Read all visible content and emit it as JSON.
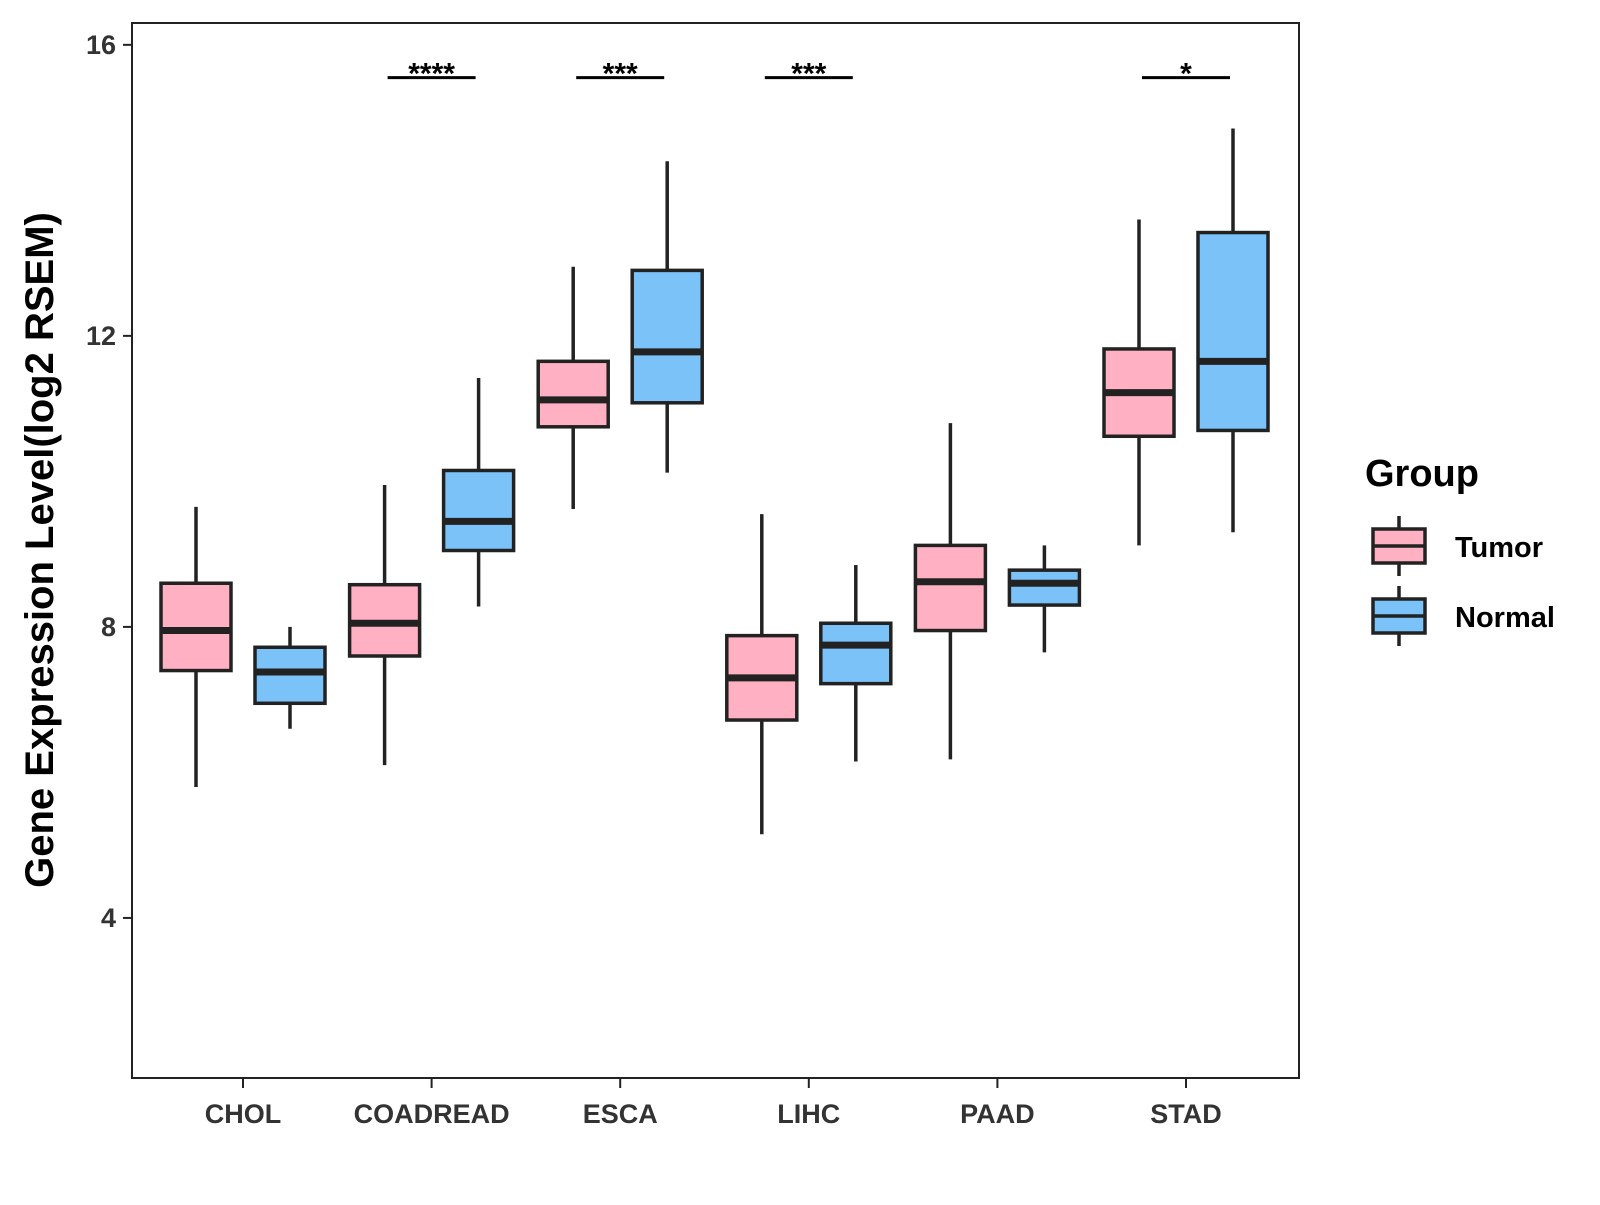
{
  "chart_data": {
    "type": "boxplot",
    "ylabel": "Gene Expression Level(log2 RSEM)",
    "xlabel": "",
    "ylim": [
      1.8,
      16.3
    ],
    "yticks": [
      4,
      8,
      12,
      16
    ],
    "categories": [
      "CHOL",
      "COADREAD",
      "ESCA",
      "LIHC",
      "PAAD",
      "STAD"
    ],
    "grid": false,
    "legend": {
      "title": "Group",
      "position": "right",
      "entries": [
        "Tumor",
        "Normal"
      ]
    },
    "colors": {
      "Tumor": "#FFB0C3",
      "Normal": "#7AC2F8",
      "outline": "#222222"
    },
    "series": [
      {
        "name": "Tumor",
        "boxes": [
          {
            "category": "CHOL",
            "whisker_low": 5.8,
            "q1": 7.4,
            "median": 7.95,
            "q3": 8.6,
            "whisker_high": 9.65
          },
          {
            "category": "COADREAD",
            "whisker_low": 6.1,
            "q1": 7.6,
            "median": 8.05,
            "q3": 8.58,
            "whisker_high": 9.95
          },
          {
            "category": "ESCA",
            "whisker_low": 9.62,
            "q1": 10.75,
            "median": 11.12,
            "q3": 11.65,
            "whisker_high": 12.95
          },
          {
            "category": "LIHC",
            "whisker_low": 5.15,
            "q1": 6.72,
            "median": 7.3,
            "q3": 7.88,
            "whisker_high": 9.55
          },
          {
            "category": "PAAD",
            "whisker_low": 6.18,
            "q1": 7.95,
            "median": 8.62,
            "q3": 9.12,
            "whisker_high": 10.8
          },
          {
            "category": "STAD",
            "whisker_low": 9.12,
            "q1": 10.62,
            "median": 11.22,
            "q3": 11.82,
            "whisker_high": 13.6
          }
        ]
      },
      {
        "name": "Normal",
        "boxes": [
          {
            "category": "CHOL",
            "whisker_low": 6.6,
            "q1": 6.95,
            "median": 7.38,
            "q3": 7.72,
            "whisker_high": 8.0
          },
          {
            "category": "COADREAD",
            "whisker_low": 8.28,
            "q1": 9.05,
            "median": 9.45,
            "q3": 10.15,
            "whisker_high": 11.42
          },
          {
            "category": "ESCA",
            "whisker_low": 10.12,
            "q1": 11.08,
            "median": 11.78,
            "q3": 12.9,
            "whisker_high": 14.4
          },
          {
            "category": "LIHC",
            "whisker_low": 6.15,
            "q1": 7.22,
            "median": 7.75,
            "q3": 8.05,
            "whisker_high": 8.85
          },
          {
            "category": "PAAD",
            "whisker_low": 7.65,
            "q1": 8.3,
            "median": 8.6,
            "q3": 8.78,
            "whisker_high": 9.12
          },
          {
            "category": "STAD",
            "whisker_low": 9.3,
            "q1": 10.7,
            "median": 11.65,
            "q3": 13.42,
            "whisker_high": 14.85
          }
        ]
      }
    ],
    "annotations": [
      {
        "category": "COADREAD",
        "text": "****",
        "y": 15.55
      },
      {
        "category": "ESCA",
        "text": "***",
        "y": 15.55
      },
      {
        "category": "LIHC",
        "text": "***",
        "y": 15.55
      },
      {
        "category": "STAD",
        "text": "*",
        "y": 15.55
      }
    ]
  }
}
